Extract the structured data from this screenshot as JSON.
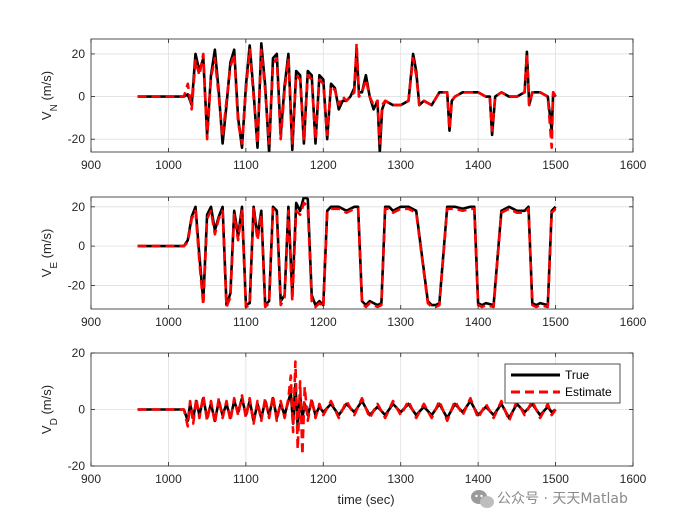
{
  "chart_data": [
    {
      "type": "line",
      "ylabel_main": "V",
      "ylabel_sub": "N",
      "ylabel_unit": " (m/s)",
      "xlim": [
        900,
        1600
      ],
      "ylim": [
        -26,
        27
      ],
      "xticks": [
        900,
        1000,
        1100,
        1200,
        1300,
        1400,
        1500,
        1600
      ],
      "yticks": [
        -20,
        0,
        20
      ],
      "grid": true,
      "series": [
        {
          "name": "True",
          "color": "#000000",
          "x": [
            960,
            1020,
            1025,
            1030,
            1035,
            1040,
            1045,
            1050,
            1055,
            1060,
            1065,
            1070,
            1075,
            1080,
            1085,
            1090,
            1095,
            1100,
            1105,
            1110,
            1115,
            1120,
            1125,
            1130,
            1135,
            1140,
            1145,
            1150,
            1155,
            1160,
            1165,
            1170,
            1175,
            1180,
            1185,
            1190,
            1195,
            1200,
            1205,
            1210,
            1215,
            1220,
            1225,
            1230,
            1235,
            1240,
            1243,
            1246,
            1250,
            1255,
            1260,
            1265,
            1270,
            1273,
            1276,
            1280,
            1290,
            1300,
            1310,
            1316,
            1320,
            1324,
            1330,
            1340,
            1350,
            1360,
            1363,
            1366,
            1370,
            1380,
            1390,
            1400,
            1410,
            1415,
            1418,
            1422,
            1430,
            1440,
            1450,
            1460,
            1463,
            1466,
            1470,
            1480,
            1490,
            1495,
            1497,
            1500
          ],
          "y": [
            0,
            0,
            1,
            -4,
            20,
            12,
            18,
            -18,
            10,
            22,
            2,
            -22,
            -4,
            16,
            22,
            -10,
            -24,
            5,
            24,
            2,
            -24,
            25,
            5,
            -26,
            18,
            20,
            -18,
            5,
            20,
            -25,
            12,
            10,
            -22,
            12,
            10,
            -22,
            10,
            8,
            -20,
            6,
            4,
            -6,
            -2,
            -2,
            0,
            4,
            22,
            2,
            2,
            10,
            0,
            -6,
            -2,
            -26,
            -6,
            -2,
            -4,
            -4,
            -2,
            20,
            12,
            -4,
            -2,
            -4,
            2,
            2,
            -16,
            -2,
            0,
            2,
            2,
            2,
            0,
            0,
            -18,
            0,
            2,
            0,
            0,
            2,
            21,
            -4,
            2,
            2,
            0,
            -16,
            2,
            0
          ]
        },
        {
          "name": "Estimate",
          "color": "#ff0000",
          "x": [
            960,
            1020,
            1025,
            1030,
            1035,
            1040,
            1045,
            1050,
            1055,
            1060,
            1065,
            1070,
            1075,
            1080,
            1085,
            1090,
            1095,
            1100,
            1105,
            1110,
            1115,
            1120,
            1125,
            1130,
            1135,
            1140,
            1145,
            1150,
            1155,
            1160,
            1165,
            1170,
            1175,
            1180,
            1185,
            1190,
            1195,
            1200,
            1205,
            1210,
            1215,
            1220,
            1225,
            1230,
            1235,
            1240,
            1243,
            1246,
            1250,
            1255,
            1260,
            1265,
            1270,
            1273,
            1276,
            1280,
            1290,
            1300,
            1310,
            1316,
            1320,
            1324,
            1330,
            1340,
            1350,
            1360,
            1363,
            1366,
            1370,
            1380,
            1390,
            1400,
            1410,
            1415,
            1418,
            1422,
            1430,
            1440,
            1450,
            1460,
            1463,
            1466,
            1470,
            1480,
            1490,
            1495,
            1497,
            1500
          ],
          "y": [
            0,
            0,
            6,
            -6,
            17,
            10,
            20,
            -20,
            9,
            18,
            0,
            -19,
            -2,
            14,
            20,
            -12,
            -22,
            3,
            22,
            0,
            -22,
            22,
            3,
            -22,
            15,
            18,
            -20,
            3,
            18,
            -22,
            10,
            8,
            -20,
            10,
            8,
            -20,
            8,
            6,
            -18,
            5,
            3,
            -4,
            0,
            -2,
            0,
            2,
            25,
            0,
            2,
            8,
            0,
            -4,
            -2,
            -22,
            -4,
            -2,
            -4,
            -4,
            -2,
            18,
            10,
            -4,
            -2,
            -4,
            2,
            2,
            -15,
            -2,
            0,
            2,
            2,
            2,
            0,
            0,
            -16,
            0,
            2,
            0,
            0,
            2,
            20,
            -4,
            2,
            2,
            0,
            -24,
            2,
            0
          ]
        }
      ]
    },
    {
      "type": "line",
      "ylabel_main": "V",
      "ylabel_sub": "E",
      "ylabel_unit": " (m/s)",
      "xlim": [
        900,
        1600
      ],
      "ylim": [
        -32,
        25
      ],
      "xticks": [
        900,
        1000,
        1100,
        1200,
        1300,
        1400,
        1500,
        1600
      ],
      "yticks": [
        -20,
        0,
        20
      ],
      "grid": true,
      "series": [
        {
          "name": "True",
          "color": "#000000",
          "x": [
            960,
            1020,
            1025,
            1030,
            1035,
            1040,
            1045,
            1050,
            1055,
            1060,
            1065,
            1070,
            1075,
            1080,
            1085,
            1090,
            1095,
            1100,
            1105,
            1110,
            1115,
            1120,
            1125,
            1130,
            1135,
            1140,
            1145,
            1150,
            1155,
            1160,
            1165,
            1170,
            1175,
            1180,
            1185,
            1190,
            1195,
            1200,
            1205,
            1210,
            1220,
            1230,
            1240,
            1245,
            1250,
            1255,
            1260,
            1270,
            1275,
            1280,
            1285,
            1290,
            1300,
            1310,
            1320,
            1335,
            1340,
            1345,
            1350,
            1360,
            1370,
            1380,
            1390,
            1395,
            1400,
            1405,
            1410,
            1420,
            1430,
            1440,
            1450,
            1460,
            1465,
            1470,
            1475,
            1480,
            1490,
            1495,
            1500
          ],
          "y": [
            0,
            0,
            3,
            15,
            20,
            -5,
            -28,
            16,
            20,
            8,
            15,
            20,
            -30,
            -24,
            18,
            5,
            20,
            -30,
            -29,
            20,
            5,
            18,
            -30,
            -28,
            20,
            18,
            -28,
            -25,
            20,
            -25,
            22,
            18,
            25,
            24,
            -25,
            -30,
            -28,
            -30,
            18,
            20,
            20,
            18,
            20,
            20,
            -28,
            -30,
            -28,
            -30,
            -29,
            20,
            20,
            18,
            20,
            20,
            18,
            -28,
            -30,
            -30,
            -29,
            20,
            20,
            19,
            20,
            20,
            -29,
            -30,
            -29,
            -30,
            18,
            20,
            18,
            18,
            20,
            -29,
            -30,
            -29,
            -30,
            18,
            20
          ]
        },
        {
          "name": "Estimate",
          "color": "#ff0000",
          "x": [
            960,
            1020,
            1025,
            1030,
            1035,
            1040,
            1045,
            1050,
            1055,
            1060,
            1065,
            1070,
            1075,
            1080,
            1085,
            1090,
            1095,
            1100,
            1105,
            1110,
            1115,
            1120,
            1125,
            1130,
            1135,
            1140,
            1145,
            1150,
            1155,
            1160,
            1165,
            1170,
            1175,
            1180,
            1185,
            1190,
            1195,
            1200,
            1205,
            1210,
            1220,
            1230,
            1240,
            1245,
            1250,
            1255,
            1260,
            1270,
            1275,
            1280,
            1285,
            1290,
            1300,
            1310,
            1320,
            1335,
            1340,
            1345,
            1350,
            1360,
            1370,
            1380,
            1390,
            1395,
            1400,
            1405,
            1410,
            1420,
            1430,
            1440,
            1450,
            1460,
            1465,
            1470,
            1475,
            1480,
            1490,
            1495,
            1500
          ],
          "y": [
            0,
            0,
            2,
            14,
            18,
            -8,
            -30,
            14,
            18,
            6,
            14,
            18,
            -31,
            -26,
            16,
            3,
            18,
            -31,
            -30,
            19,
            3,
            16,
            -31,
            -29,
            19,
            16,
            -30,
            -26,
            18,
            -28,
            18,
            16,
            22,
            20,
            -28,
            -31,
            -29,
            -31,
            17,
            19,
            19,
            17,
            19,
            19,
            -29,
            -31,
            -29,
            -31,
            -30,
            19,
            19,
            17,
            19,
            19,
            17,
            -29,
            -31,
            -31,
            -30,
            19,
            19,
            18,
            19,
            19,
            -30,
            -31,
            -30,
            -31,
            17,
            19,
            17,
            17,
            19,
            -30,
            -31,
            -30,
            -31,
            17,
            19
          ]
        }
      ]
    },
    {
      "type": "line",
      "ylabel_main": "V",
      "ylabel_sub": "D",
      "ylabel_unit": " (m/s)",
      "xlabel": "time (sec)",
      "xlim": [
        900,
        1600
      ],
      "ylim": [
        -20,
        20
      ],
      "xticks": [
        900,
        1000,
        1100,
        1200,
        1300,
        1400,
        1500,
        1600
      ],
      "yticks": [
        -20,
        0,
        20
      ],
      "grid": true,
      "legend_position": "top-right",
      "series": [
        {
          "name": "True",
          "color": "#000000",
          "x": [
            960,
            1020,
            1025,
            1028,
            1032,
            1036,
            1040,
            1045,
            1050,
            1055,
            1060,
            1065,
            1070,
            1075,
            1080,
            1085,
            1090,
            1095,
            1100,
            1105,
            1110,
            1115,
            1120,
            1125,
            1130,
            1135,
            1140,
            1145,
            1150,
            1155,
            1158,
            1161,
            1164,
            1167,
            1170,
            1173,
            1176,
            1180,
            1185,
            1190,
            1195,
            1200,
            1210,
            1220,
            1230,
            1240,
            1250,
            1260,
            1270,
            1280,
            1290,
            1300,
            1310,
            1320,
            1330,
            1340,
            1350,
            1360,
            1370,
            1380,
            1390,
            1400,
            1410,
            1420,
            1430,
            1440,
            1450,
            1460,
            1470,
            1480,
            1490,
            1495,
            1500
          ],
          "y": [
            0,
            0,
            -4,
            2,
            -3,
            3,
            -2,
            4,
            -3,
            2,
            -4,
            3,
            -2,
            2,
            -3,
            3,
            -1,
            4,
            -2,
            3,
            -4,
            2,
            -3,
            3,
            -2,
            4,
            -3,
            2,
            -2,
            3,
            6,
            -5,
            9,
            -6,
            5,
            -3,
            2,
            -2,
            3,
            -2,
            1,
            -1,
            2,
            -2,
            2,
            -1,
            3,
            -2,
            1,
            -2,
            2,
            -1,
            2,
            -2,
            1,
            -2,
            2,
            -3,
            2,
            -1,
            3,
            -2,
            1,
            -2,
            2,
            -3,
            2,
            -1,
            2,
            -2,
            1,
            -1,
            0
          ]
        },
        {
          "name": "Estimate",
          "color": "#ff0000",
          "x": [
            960,
            1020,
            1025,
            1028,
            1032,
            1036,
            1040,
            1045,
            1050,
            1055,
            1060,
            1065,
            1070,
            1075,
            1080,
            1085,
            1090,
            1095,
            1100,
            1105,
            1110,
            1115,
            1120,
            1125,
            1130,
            1135,
            1140,
            1145,
            1150,
            1155,
            1158,
            1161,
            1164,
            1167,
            1170,
            1173,
            1176,
            1180,
            1185,
            1190,
            1195,
            1200,
            1210,
            1220,
            1230,
            1240,
            1250,
            1260,
            1270,
            1280,
            1290,
            1300,
            1310,
            1320,
            1330,
            1340,
            1350,
            1360,
            1370,
            1380,
            1390,
            1400,
            1410,
            1420,
            1430,
            1440,
            1450,
            1460,
            1470,
            1480,
            1490,
            1495,
            1500
          ],
          "y": [
            0,
            0,
            -6,
            3,
            -5,
            4,
            -3,
            5,
            -4,
            3,
            -5,
            4,
            -3,
            3,
            -4,
            4,
            -2,
            5,
            -3,
            4,
            -5,
            3,
            -4,
            4,
            -3,
            5,
            -4,
            3,
            -3,
            4,
            12,
            -8,
            17,
            -14,
            10,
            -16,
            8,
            -4,
            4,
            -3,
            2,
            -2,
            3,
            -3,
            3,
            -2,
            4,
            -3,
            2,
            -3,
            3,
            -2,
            3,
            -3,
            2,
            -3,
            3,
            -4,
            3,
            -2,
            4,
            -3,
            2,
            -3,
            3,
            -4,
            3,
            -2,
            3,
            -3,
            2,
            -2,
            0
          ]
        }
      ]
    }
  ],
  "watermark": "公众号 · 天天Matlab"
}
